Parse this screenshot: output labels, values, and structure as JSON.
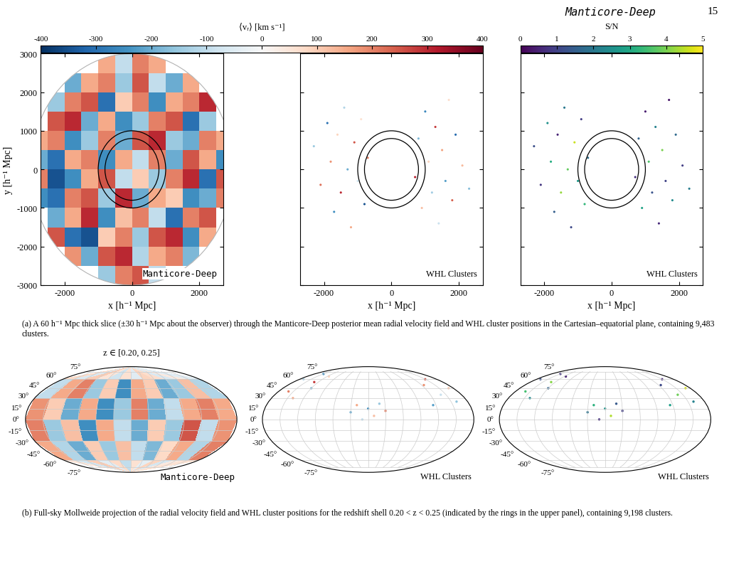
{
  "page": {
    "header": "Manticore-Deep",
    "page_number": 15,
    "shell_title": "z ∈ [0.20, 0.25]",
    "captions": [
      "(a) A 60 h⁻¹ Mpc thick slice (±30 h⁻¹ Mpc about the observer) through the Manticore-Deep posterior mean radial velocity field and WHL cluster positions in the Cartesian–equatorial plane, containing 9,483 clusters.",
      "(b) Full-sky Mollweide projection of the radial velocity field and WHL cluster positions for the redshift shell 0.20 < z < 0.25 (indicated by the rings in the upper panel), containing 9,198 clusters."
    ]
  },
  "colorbars": [
    {
      "label": "⟨vᵣ⟩ [km s⁻¹]",
      "range": [
        -400,
        400
      ],
      "ticks": [
        -400,
        -300,
        -200,
        -100,
        0,
        100,
        200,
        300,
        400
      ]
    },
    {
      "label": "S/N",
      "range": [
        0,
        5
      ],
      "ticks": [
        0,
        1,
        2,
        3,
        4,
        5
      ]
    }
  ],
  "chart_data": [
    {
      "type": "heatmap",
      "label": "Manticore-Deep",
      "xlabel": "x [h⁻¹ Mpc]",
      "ylabel": "y [h⁻¹ Mpc]",
      "xlim": [
        -2700,
        2700
      ],
      "ylim": [
        -3000,
        3000
      ],
      "xticks": [
        -2000,
        0,
        2000
      ],
      "yticks": [
        -3000,
        -2000,
        -1000,
        0,
        1000,
        2000,
        3000
      ],
      "field_radius": 3000,
      "rings": [
        800,
        1000
      ],
      "x_edges": [
        -3000,
        -2500,
        -2000,
        -1500,
        -1000,
        -500,
        0,
        500,
        1000,
        1500,
        2000,
        2500,
        3000
      ],
      "y_edges": [
        -3000,
        -2500,
        -2000,
        -1500,
        -1000,
        -500,
        0,
        500,
        1000,
        1500,
        2000,
        2500,
        3000
      ],
      "cells": [
        [
          null,
          null,
          null,
          null,
          -150,
          200,
          250,
          -100,
          null,
          null,
          null,
          null
        ],
        [
          null,
          null,
          180,
          -200,
          250,
          300,
          -120,
          150,
          200,
          -180,
          null,
          null
        ],
        [
          null,
          250,
          -300,
          -350,
          100,
          200,
          -150,
          250,
          300,
          -250,
          150,
          null
        ],
        [
          null,
          -200,
          150,
          300,
          -250,
          120,
          200,
          -100,
          -300,
          200,
          250,
          null
        ],
        [
          -250,
          -300,
          200,
          250,
          -150,
          300,
          -200,
          150,
          100,
          -250,
          -200,
          200
        ],
        [
          200,
          -350,
          -250,
          150,
          250,
          -100,
          100,
          -150,
          200,
          300,
          -300,
          250
        ],
        [
          -200,
          -300,
          150,
          200,
          -250,
          150,
          -100,
          200,
          -200,
          250,
          150,
          -250
        ],
        [
          150,
          200,
          -250,
          -150,
          200,
          -200,
          250,
          300,
          -150,
          -200,
          200,
          150
        ],
        [
          null,
          250,
          300,
          -200,
          150,
          -250,
          -150,
          200,
          250,
          -300,
          -150,
          null
        ],
        [
          null,
          -150,
          200,
          250,
          -300,
          100,
          200,
          -250,
          150,
          200,
          300,
          null
        ],
        [
          null,
          null,
          -200,
          150,
          200,
          -150,
          250,
          -100,
          -200,
          150,
          null,
          null
        ],
        [
          null,
          null,
          null,
          null,
          150,
          -100,
          200,
          150,
          null,
          null,
          null,
          null
        ]
      ]
    },
    {
      "type": "scatter",
      "label": "WHL Clusters",
      "tick_labels": "x",
      "xlabel": "x [h⁻¹ Mpc]",
      "xlim": [
        -2700,
        2700
      ],
      "ylim": [
        -3000,
        3000
      ],
      "xticks": [
        -2000,
        0,
        2000
      ],
      "yticks": [
        -3000,
        -2000,
        -1000,
        0,
        1000,
        2000,
        3000
      ],
      "rings": [
        800,
        1000
      ],
      "x": [
        -2300,
        -2100,
        -1900,
        -1800,
        -1700,
        -1600,
        -1500,
        -1400,
        -1300,
        -1200,
        -1100,
        -1000,
        -900,
        -800,
        -700,
        700,
        800,
        900,
        1000,
        1100,
        1200,
        1300,
        1400,
        1500,
        1600,
        1700,
        1800,
        1900,
        2100,
        2300
      ],
      "y": [
        600,
        -400,
        1200,
        200,
        -1100,
        900,
        -600,
        1600,
        0,
        -1500,
        700,
        -300,
        1300,
        -900,
        300,
        -200,
        800,
        -1000,
        1500,
        200,
        -600,
        1100,
        -1400,
        500,
        -300,
        1800,
        -800,
        900,
        100,
        -500
      ],
      "velocity": [
        -150,
        220,
        -300,
        180,
        -250,
        90,
        300,
        -120,
        -200,
        150,
        250,
        -80,
        60,
        -350,
        200,
        310,
        -180,
        120,
        -260,
        90,
        -140,
        280,
        -90,
        160,
        -220,
        70,
        240,
        -310,
        130,
        -170
      ]
    },
    {
      "type": "scatter",
      "label": "WHL Clusters",
      "tick_labels": "x",
      "xlabel": "x [h⁻¹ Mpc]",
      "xlim": [
        -2700,
        2700
      ],
      "ylim": [
        -3000,
        3000
      ],
      "xticks": [
        -2000,
        0,
        2000
      ],
      "yticks": [
        -3000,
        -2000,
        -1000,
        0,
        1000,
        2000,
        3000
      ],
      "rings": [
        800,
        1000
      ],
      "x": [
        -2300,
        -2100,
        -1900,
        -1800,
        -1700,
        -1600,
        -1500,
        -1400,
        -1300,
        -1200,
        -1100,
        -1000,
        -900,
        -800,
        -700,
        700,
        800,
        900,
        1000,
        1100,
        1200,
        1300,
        1400,
        1500,
        1600,
        1700,
        1800,
        1900,
        2100,
        2300
      ],
      "y": [
        600,
        -400,
        1200,
        200,
        -1100,
        900,
        -600,
        1600,
        0,
        -1500,
        700,
        -300,
        1300,
        -900,
        300,
        -200,
        800,
        -1000,
        1500,
        200,
        -600,
        1100,
        -1400,
        500,
        -300,
        1800,
        -800,
        900,
        100,
        -500
      ],
      "sn": [
        1.2,
        0.8,
        2.5,
        3.1,
        1.5,
        0.5,
        4.2,
        2.0,
        3.8,
        1.1,
        4.6,
        2.7,
        0.9,
        3.3,
        1.8,
        0.7,
        1.6,
        2.9,
        0.4,
        3.6,
        1.3,
        2.2,
        0.6,
        4.0,
        1.0,
        0.3,
        2.4,
        1.7,
        0.9,
        2.1
      ]
    },
    {
      "type": "mollweide_heatmap",
      "label": "Manticore-Deep",
      "tick_labels": "y",
      "grid": true,
      "lon_edges": [
        -180,
        -150,
        -120,
        -90,
        -60,
        -30,
        0,
        30,
        60,
        90,
        120,
        150,
        180
      ],
      "lat_edges": [
        -90,
        -60,
        -30,
        0,
        30,
        60,
        90
      ],
      "xticks": [
        -150,
        -120,
        -90,
        -60,
        -30,
        0,
        30,
        60,
        90,
        120,
        150
      ],
      "yticks": [
        {
          "value": -75,
          "label": "-75°"
        },
        {
          "value": -60,
          "label": "-60°"
        },
        {
          "value": -45,
          "label": "-45°"
        },
        {
          "value": -30,
          "label": "-30°"
        },
        {
          "value": -15,
          "label": "-15°"
        },
        {
          "value": 0,
          "label": "0°"
        },
        {
          "value": 15,
          "label": "15°"
        },
        {
          "value": 30,
          "label": "30°"
        },
        {
          "value": 45,
          "label": "45°"
        },
        {
          "value": 60,
          "label": "60°"
        },
        {
          "value": 75,
          "label": "75°"
        }
      ],
      "cells": [
        [
          50,
          -80,
          100,
          -50,
          80,
          -100,
          60,
          -40,
          90,
          -70,
          40,
          60
        ],
        [
          150,
          -120,
          -200,
          100,
          -150,
          120,
          -100,
          -180,
          80,
          150,
          -120,
          200
        ],
        [
          200,
          -150,
          120,
          -250,
          150,
          -100,
          -200,
          100,
          -150,
          250,
          -100,
          180
        ],
        [
          180,
          100,
          -200,
          150,
          -250,
          -150,
          200,
          -200,
          -100,
          150,
          200,
          150
        ],
        [
          -100,
          150,
          200,
          -150,
          100,
          -250,
          150,
          100,
          -200,
          -150,
          120,
          -120
        ],
        [
          80,
          -60,
          100,
          50,
          -80,
          60,
          -50,
          90,
          70,
          -60,
          40,
          -50
        ]
      ]
    },
    {
      "type": "mollweide_scatter",
      "label": "WHL Clusters",
      "tick_labels": "y",
      "grid": true,
      "xticks": [
        -150,
        -120,
        -90,
        -60,
        -30,
        0,
        30,
        60,
        90,
        120,
        150
      ],
      "yticks": [
        {
          "value": -75,
          "label": "-75°"
        },
        {
          "value": -60,
          "label": "-60°"
        },
        {
          "value": -45,
          "label": "-45°"
        },
        {
          "value": -30,
          "label": "-30°"
        },
        {
          "value": -15,
          "label": "-15°"
        },
        {
          "value": 0,
          "label": "0°"
        },
        {
          "value": 15,
          "label": "15°"
        },
        {
          "value": 30,
          "label": "30°"
        },
        {
          "value": 45,
          "label": "45°"
        },
        {
          "value": 60,
          "label": "60°"
        },
        {
          "value": 75,
          "label": "75°"
        }
      ],
      "lon": [
        -170,
        -160,
        -150,
        -140,
        -130,
        -120,
        -115,
        -30,
        -20,
        -10,
        0,
        10,
        20,
        30,
        115,
        125,
        140,
        150,
        160,
        170
      ],
      "lat": [
        60,
        40,
        70,
        30,
        55,
        45,
        65,
        10,
        20,
        0,
        15,
        5,
        22,
        12,
        20,
        50,
        35,
        60,
        25,
        45
      ],
      "velocity": [
        -120,
        200,
        -250,
        150,
        280,
        -180,
        90,
        -200,
        150,
        -100,
        -250,
        120,
        -150,
        200,
        -220,
        180,
        -90,
        250,
        -160,
        110
      ]
    },
    {
      "type": "mollweide_scatter",
      "label": "WHL Clusters",
      "tick_labels": "y",
      "grid": true,
      "xticks": [
        -150,
        -120,
        -90,
        -60,
        -30,
        0,
        30,
        60,
        90,
        120,
        150
      ],
      "yticks": [
        {
          "value": -75,
          "label": "-75°"
        },
        {
          "value": -60,
          "label": "-60°"
        },
        {
          "value": -45,
          "label": "-45°"
        },
        {
          "value": -30,
          "label": "-30°"
        },
        {
          "value": -15,
          "label": "-15°"
        },
        {
          "value": 0,
          "label": "0°"
        },
        {
          "value": 15,
          "label": "15°"
        },
        {
          "value": 30,
          "label": "30°"
        },
        {
          "value": 45,
          "label": "45°"
        },
        {
          "value": 60,
          "label": "60°"
        },
        {
          "value": 75,
          "label": "75°"
        }
      ],
      "lon": [
        -170,
        -160,
        -150,
        -140,
        -130,
        -120,
        -115,
        -30,
        -20,
        -10,
        0,
        10,
        20,
        30,
        115,
        125,
        140,
        150,
        160,
        170
      ],
      "lat": [
        60,
        40,
        70,
        30,
        55,
        45,
        65,
        10,
        20,
        0,
        15,
        5,
        22,
        12,
        20,
        50,
        35,
        60,
        25,
        45
      ],
      "sn": [
        1.2,
        3.5,
        0.8,
        2.4,
        4.1,
        1.6,
        0.5,
        1.9,
        3.2,
        0.7,
        2.6,
        4.4,
        1.4,
        0.9,
        2.8,
        1.1,
        3.9,
        0.6,
        2.2,
        4.7
      ]
    }
  ]
}
